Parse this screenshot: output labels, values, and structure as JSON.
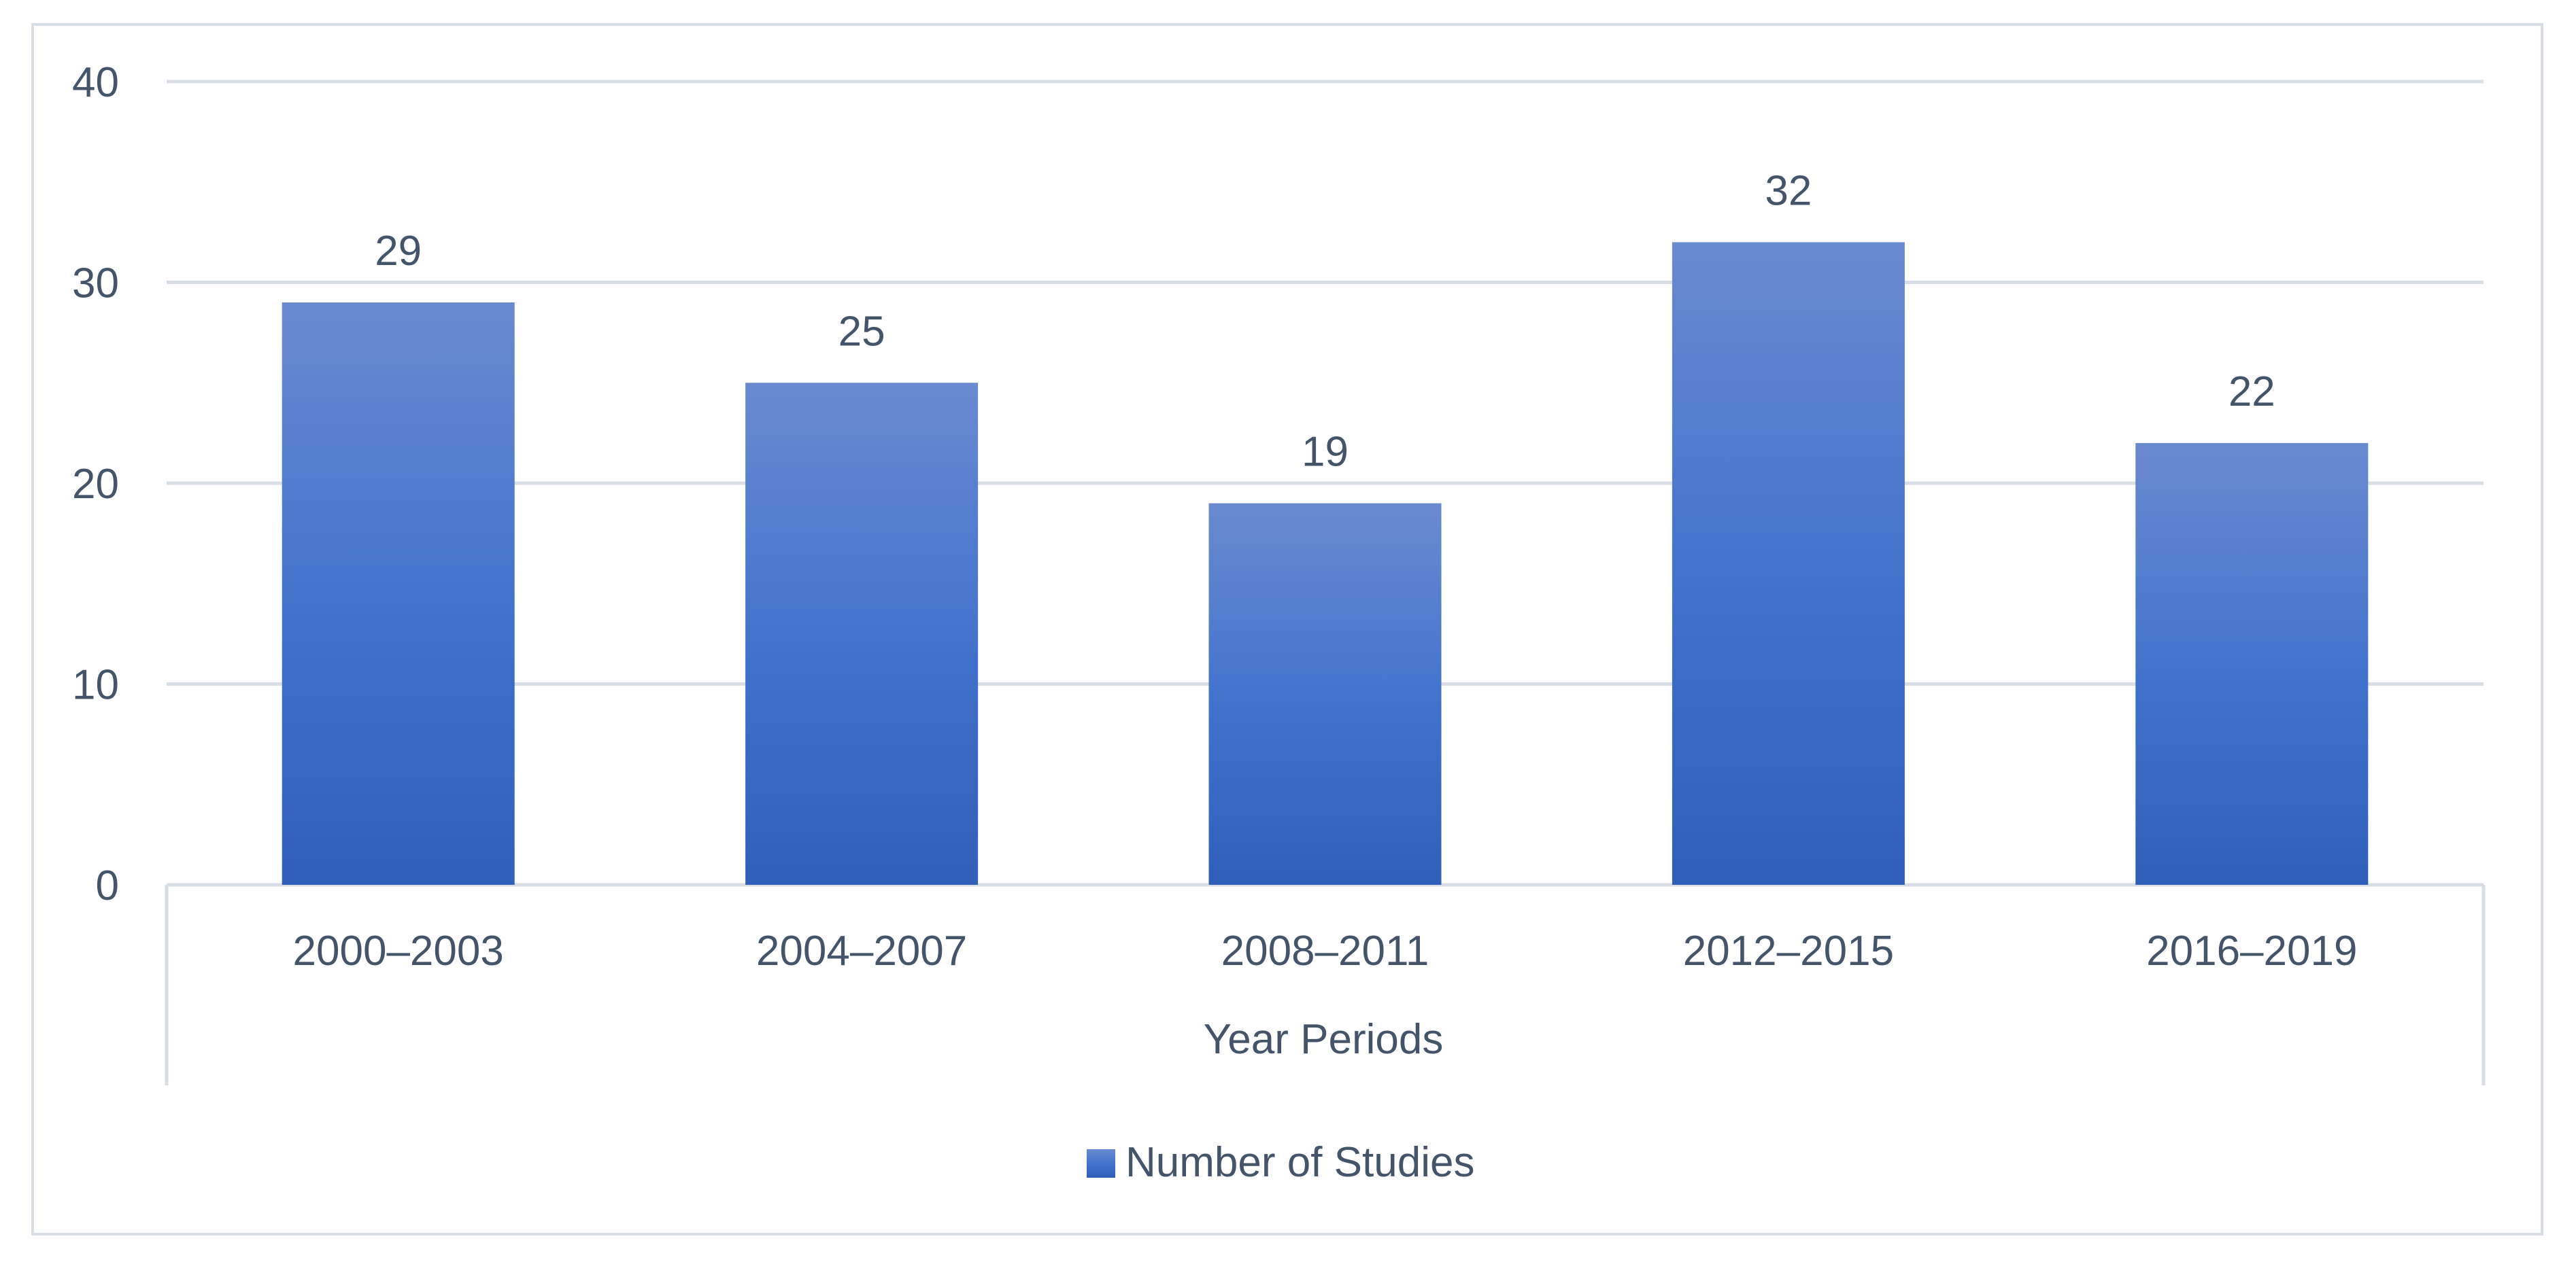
{
  "chart_data": {
    "type": "bar",
    "title": "",
    "xlabel": "Year Periods",
    "ylabel": "",
    "categories": [
      "2000–2003",
      "2004–2007",
      "2008–2011",
      "2012–2015",
      "2016–2019"
    ],
    "series": [
      {
        "name": "Number of Studies",
        "values": [
          29,
          25,
          19,
          32,
          22
        ]
      }
    ],
    "ylim": [
      0,
      40
    ],
    "yticks": [
      "0",
      "10",
      "20",
      "30",
      "40"
    ],
    "grid": true,
    "legend_position": "bottom",
    "colors": {
      "bar_top": "#6a8ad0",
      "bar_mid": "#3f72cc",
      "bar_bottom": "#2f5fb9",
      "grid": "#d9dee6",
      "axis": "#d9dee6",
      "text": "#44546a"
    }
  }
}
